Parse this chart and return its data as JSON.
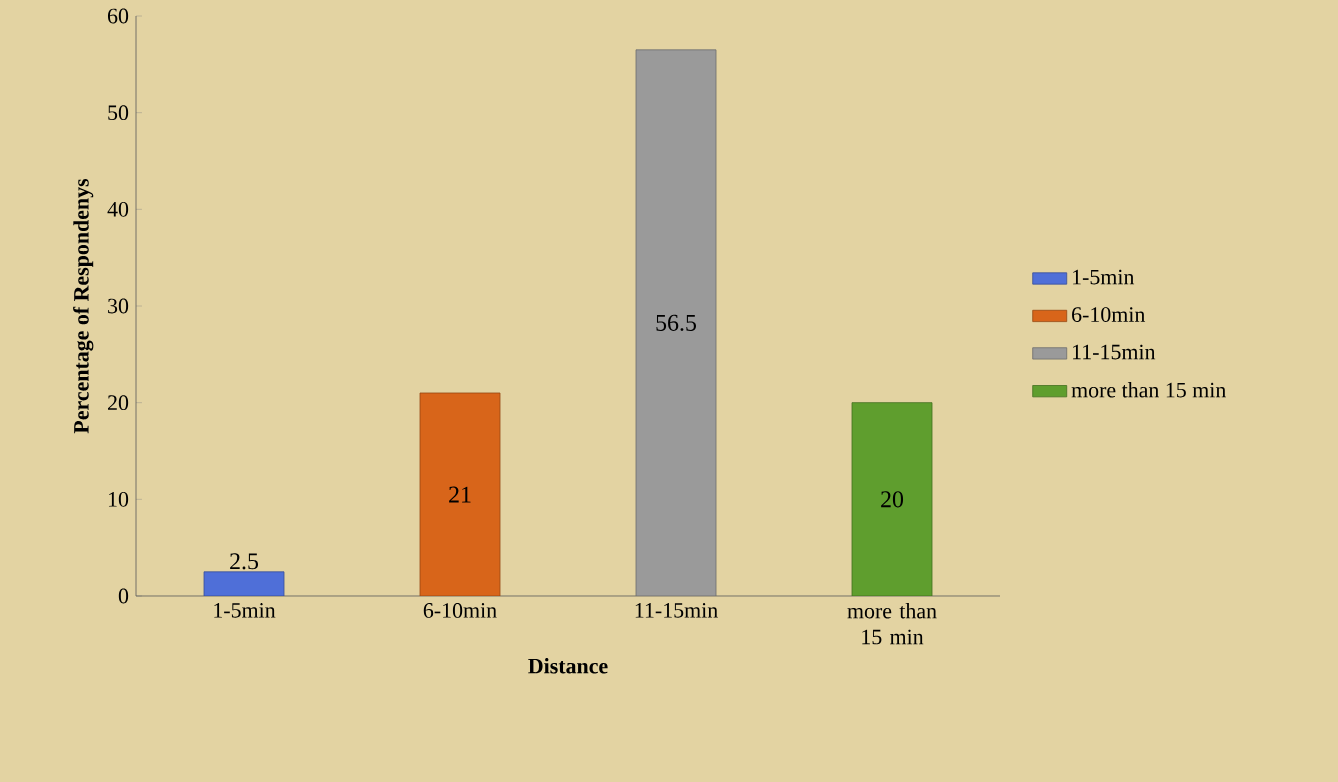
{
  "chart_data": {
    "type": "bar",
    "xlabel": "Distance",
    "ylabel": "Percentage of Respondenys",
    "categories": [
      "1-5min",
      "6-10min",
      "11-15min",
      "more than 15 min"
    ],
    "series": [
      {
        "name": "1-5min",
        "color": "#4f6fd8",
        "values": [
          2.5,
          null,
          null,
          null
        ],
        "value_labels": [
          "2.5",
          null,
          null,
          null
        ]
      },
      {
        "name": "6-10min",
        "color": "#d8651a",
        "values": [
          null,
          21,
          null,
          null
        ],
        "value_labels": [
          null,
          "21",
          null,
          null
        ]
      },
      {
        "name": "11-15min",
        "color": "#9a9a9a",
        "values": [
          null,
          null,
          56.5,
          null
        ],
        "value_labels": [
          null,
          null,
          "56.5",
          null
        ]
      },
      {
        "name": "more than 15 min",
        "color": "#5f9e2e",
        "values": [
          null,
          null,
          null,
          20
        ],
        "value_labels": [
          null,
          null,
          null,
          "20"
        ]
      }
    ],
    "ylim": [
      0,
      60
    ],
    "yticks": [
      0,
      10,
      20,
      30,
      40,
      50,
      60
    ],
    "legend": "right"
  }
}
